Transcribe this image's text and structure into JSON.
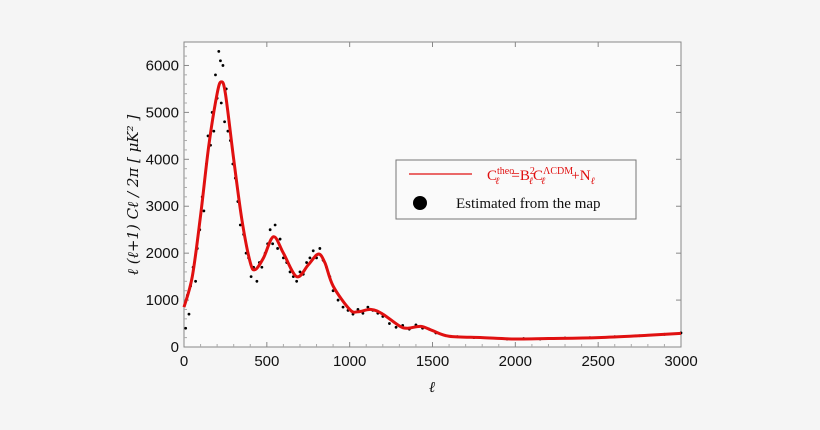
{
  "chart_data": {
    "type": "line",
    "title": "",
    "xlabel": "ℓ",
    "ylabel": "ℓ (ℓ+1) Cℓ / 2π  [ μK² ]",
    "xlim": [
      0,
      3000
    ],
    "ylim": [
      0,
      6500
    ],
    "xticks": [
      "0",
      "500",
      "1000",
      "1500",
      "2000",
      "2500",
      "3000"
    ],
    "yticks": [
      "0",
      "1000",
      "2000",
      "3000",
      "4000",
      "5000",
      "6000"
    ],
    "grid": false,
    "legend_position": "center-right",
    "series": [
      {
        "name": "Cℓ^theo = Bℓ² Cℓ^ΛCDM + Nℓ",
        "kind": "line",
        "color": "#e01010",
        "x": [
          0,
          50,
          100,
          150,
          200,
          225,
          250,
          300,
          350,
          400,
          430,
          480,
          540,
          600,
          680,
          750,
          810,
          850,
          900,
          1000,
          1050,
          1130,
          1200,
          1300,
          1350,
          1430,
          1500,
          1600,
          1800,
          2000,
          2200,
          2500,
          2800,
          3000
        ],
        "y": [
          850,
          1500,
          2800,
          4300,
          5400,
          5650,
          5400,
          4000,
          2700,
          1800,
          1650,
          1900,
          2350,
          2000,
          1500,
          1750,
          1980,
          1800,
          1300,
          800,
          750,
          800,
          700,
          450,
          400,
          440,
          350,
          230,
          200,
          170,
          180,
          200,
          250,
          290
        ]
      },
      {
        "name": "Estimated from the map",
        "kind": "scatter",
        "color": "#000000",
        "x": [
          10,
          20,
          30,
          40,
          55,
          70,
          80,
          95,
          110,
          120,
          135,
          145,
          160,
          170,
          180,
          190,
          200,
          210,
          220,
          225,
          235,
          245,
          255,
          265,
          280,
          295,
          310,
          325,
          340,
          360,
          375,
          390,
          405,
          420,
          440,
          455,
          470,
          490,
          505,
          520,
          535,
          550,
          565,
          580,
          600,
          620,
          640,
          660,
          680,
          700,
          720,
          740,
          760,
          780,
          800,
          820,
          840,
          860,
          880,
          900,
          930,
          960,
          990,
          1020,
          1050,
          1080,
          1110,
          1140,
          1170,
          1200,
          1240,
          1280,
          1320,
          1360,
          1400,
          1440,
          1480,
          1520,
          1580,
          1650,
          1750,
          1850,
          1950,
          2050,
          2150,
          2300,
          2450,
          2600,
          2750,
          2900,
          3000
        ],
        "y": [
          400,
          1100,
          700,
          1300,
          1700,
          1400,
          2100,
          2500,
          3200,
          2900,
          3900,
          4500,
          4300,
          5000,
          4600,
          5800,
          5300,
          6300,
          6100,
          5200,
          6000,
          4800,
          5500,
          4600,
          4400,
          3900,
          3600,
          3100,
          2600,
          2400,
          2000,
          1900,
          1500,
          1700,
          1400,
          1800,
          1700,
          2000,
          2200,
          2500,
          2200,
          2600,
          2100,
          2300,
          1900,
          1800,
          1600,
          1500,
          1400,
          1600,
          1550,
          1800,
          1900,
          2050,
          1900,
          2100,
          1850,
          1700,
          1500,
          1200,
          1000,
          850,
          780,
          700,
          800,
          720,
          850,
          780,
          720,
          650,
          500,
          420,
          460,
          380,
          470,
          400,
          380,
          300,
          240,
          220,
          200,
          190,
          170,
          180,
          170,
          190,
          200,
          220,
          240,
          270,
          300
        ]
      }
    ]
  },
  "legend": {
    "line_label": "=B",
    "C": "C",
    "theo": "theo",
    "lcdm": "ΛCDM",
    "sq": "2",
    "ell": "ℓ",
    "plusN": "+N",
    "scatter_label": "Estimated from the map"
  }
}
